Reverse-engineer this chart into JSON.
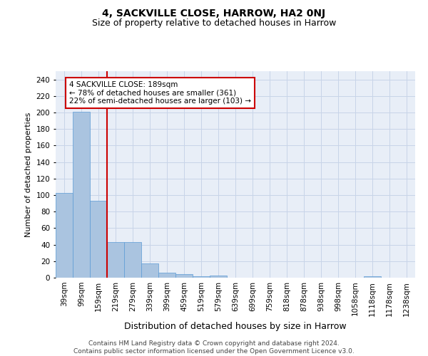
{
  "title": "4, SACKVILLE CLOSE, HARROW, HA2 0NJ",
  "subtitle": "Size of property relative to detached houses in Harrow",
  "xlabel": "Distribution of detached houses by size in Harrow",
  "ylabel": "Number of detached properties",
  "categories": [
    "39sqm",
    "99sqm",
    "159sqm",
    "219sqm",
    "279sqm",
    "339sqm",
    "399sqm",
    "459sqm",
    "519sqm",
    "579sqm",
    "639sqm",
    "699sqm",
    "759sqm",
    "818sqm",
    "878sqm",
    "938sqm",
    "998sqm",
    "1058sqm",
    "1118sqm",
    "1178sqm",
    "1238sqm"
  ],
  "values": [
    103,
    201,
    93,
    43,
    43,
    17,
    6,
    4,
    2,
    3,
    0,
    0,
    0,
    0,
    0,
    0,
    0,
    0,
    2,
    0,
    0
  ],
  "bar_color": "#aac4e0",
  "bar_edge_color": "#5b9bd5",
  "vline_x_index": 2,
  "vline_color": "#cc0000",
  "annotation_box_text": "4 SACKVILLE CLOSE: 189sqm\n← 78% of detached houses are smaller (361)\n22% of semi-detached houses are larger (103) →",
  "annotation_box_color": "#cc0000",
  "ylim": [
    0,
    250
  ],
  "yticks": [
    0,
    20,
    40,
    60,
    80,
    100,
    120,
    140,
    160,
    180,
    200,
    220,
    240
  ],
  "grid_color": "#c8d4e8",
  "background_color": "#e8eef7",
  "footer_text": "Contains HM Land Registry data © Crown copyright and database right 2024.\nContains public sector information licensed under the Open Government Licence v3.0.",
  "title_fontsize": 10,
  "subtitle_fontsize": 9,
  "ylabel_fontsize": 8,
  "xlabel_fontsize": 9,
  "tick_fontsize": 7.5,
  "footer_fontsize": 6.5,
  "ann_fontsize": 7.5
}
